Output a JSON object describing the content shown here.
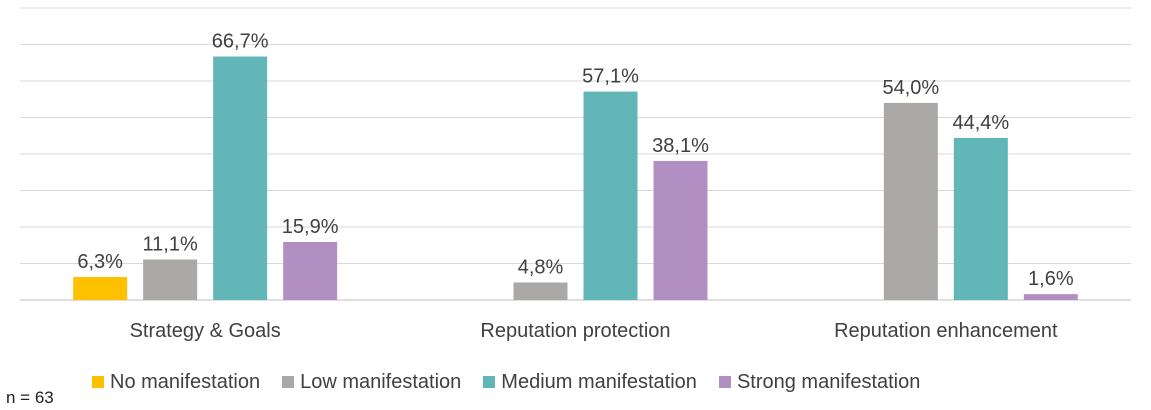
{
  "chart_data": {
    "type": "bar",
    "categories": [
      "Strategy & Goals",
      "Reputation protection",
      "Reputation enhancement"
    ],
    "series": [
      {
        "name": "No manifestation",
        "color": "#FFC000",
        "values": [
          6.3,
          0,
          0
        ],
        "labels": [
          "6,3%",
          "",
          ""
        ]
      },
      {
        "name": "Low manifestation",
        "color": "#ABA8A8",
        "values": [
          11.1,
          4.8,
          54.0
        ],
        "labels": [
          "11,1%",
          "4,8%",
          "54,0%"
        ]
      },
      {
        "name": "Medium manifestation",
        "color": "#62B6B7",
        "values": [
          66.7,
          57.1,
          44.4
        ],
        "labels": [
          "66,7%",
          "57,1%",
          "44,4%"
        ]
      },
      {
        "name": "Strong manifestation",
        "color": "#B28FC3",
        "values": [
          15.9,
          38.1,
          1.6
        ],
        "labels": [
          "15,9%",
          "38,1%",
          "1,6%"
        ]
      }
    ],
    "ylim": [
      0,
      80
    ],
    "y_gridlines": 8,
    "grid": true,
    "legend_position": "bottom",
    "note": "n = 63"
  }
}
